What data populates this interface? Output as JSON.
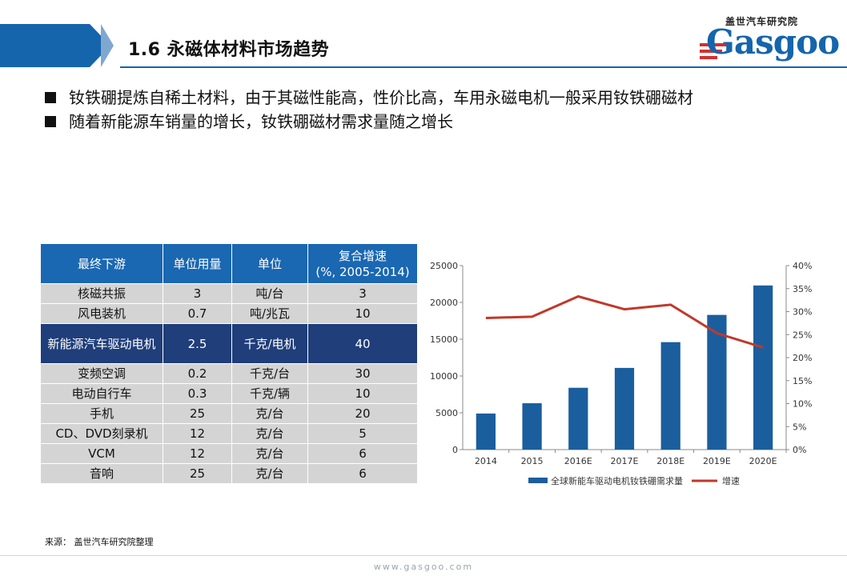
{
  "header": {
    "title": "1.6 永磁体材料市场趋势"
  },
  "logo": {
    "cn": "盖世汽车研究院",
    "en": "Gasgoo"
  },
  "bullets": [
    "钕铁硼提炼自稀土材料，由于其磁性能高，性价比高，车用永磁电机一般采用钕铁硼磁材",
    "随着新能源车销量的增长，钕铁硼磁材需求量随之增长"
  ],
  "table": {
    "headers": [
      "最终下游",
      "单位用量",
      "单位",
      "复合增速",
      "(%, 2005-2014)"
    ],
    "rows": [
      [
        "核磁共振",
        "3",
        "吨/台",
        "3"
      ],
      [
        "风电装机",
        "0.7",
        "吨/兆瓦",
        "10"
      ],
      [
        "新能源汽车驱动电机",
        "2.5",
        "千克/电机",
        "40"
      ],
      [
        "变频空调",
        "0.2",
        "千克/台",
        "30"
      ],
      [
        "电动自行车",
        "0.3",
        "千克/辆",
        "10"
      ],
      [
        "手机",
        "25",
        "克/台",
        "20"
      ],
      [
        "CD、DVD刻录机",
        "12",
        "克/台",
        "5"
      ],
      [
        "VCM",
        "12",
        "克/台",
        "6"
      ],
      [
        "音响",
        "25",
        "克/台",
        "6"
      ]
    ],
    "highlight_row": 2
  },
  "chart_data": {
    "type": "bar",
    "categories": [
      "2014",
      "2015",
      "2016E",
      "2017E",
      "2018E",
      "2019E",
      "2020E"
    ],
    "series": [
      {
        "name": "全球新能车驱动电机钕铁硼需求量",
        "type": "bar",
        "axis": "left",
        "color": "#1a5e9e",
        "values": [
          4900,
          6300,
          8400,
          11100,
          14600,
          18300,
          22300
        ]
      },
      {
        "name": "增速",
        "type": "line",
        "axis": "right",
        "color": "#c0392b",
        "values": [
          28.6,
          28.9,
          33.3,
          30.5,
          31.5,
          25.3,
          22.2
        ]
      }
    ],
    "ylim_left": [
      0,
      25000
    ],
    "yticks_left": [
      "0",
      "5000",
      "10000",
      "15000",
      "20000",
      "25000"
    ],
    "ylim_right": [
      0,
      40
    ],
    "yticks_right": [
      "0%",
      "5%",
      "10%",
      "15%",
      "20%",
      "25%",
      "30%",
      "35%",
      "40%"
    ],
    "legend_position": "bottom"
  },
  "footer": {
    "source": "来源： 盖世汽车研究院整理",
    "url": "www.gasgoo.com"
  }
}
